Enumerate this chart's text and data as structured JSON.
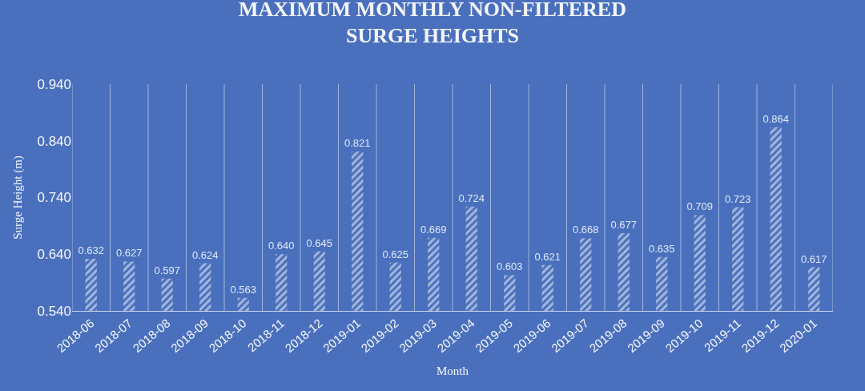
{
  "chart_data": {
    "type": "bar",
    "title": "MAXIMUM MONTHLY NON-FILTERED\nSURGE HEIGHTS",
    "xlabel": "Month",
    "ylabel": "Surge Height (m)",
    "categories": [
      "2018-06",
      "2018-07",
      "2018-08",
      "2018-09",
      "2018-10",
      "2018-11",
      "2018-12",
      "2019-01",
      "2019-02",
      "2019-03",
      "2019-04",
      "2019-05",
      "2019-06",
      "2019-07",
      "2019-08",
      "2019-09",
      "2019-10",
      "2019-11",
      "2019-12",
      "2020-01"
    ],
    "values": [
      0.632,
      0.627,
      0.597,
      0.624,
      0.563,
      0.64,
      0.645,
      0.821,
      0.625,
      0.669,
      0.724,
      0.603,
      0.621,
      0.668,
      0.677,
      0.635,
      0.709,
      0.723,
      0.864,
      0.617
    ],
    "value_labels": [
      "0.632",
      "0.627",
      "0.597",
      "0.624",
      "0.563",
      "0.640",
      "0.645",
      "0.821",
      "0.625",
      "0.669",
      "0.724",
      "0.603",
      "0.621",
      "0.668",
      "0.677",
      "0.635",
      "0.709",
      "0.723",
      "0.864",
      "0.617"
    ],
    "color": "#ffffff",
    "grid": "x",
    "ylim": [
      0.54,
      0.94
    ],
    "yticks": [
      {
        "value": 0.54,
        "label": "0.540"
      },
      {
        "value": 0.64,
        "label": "0.640"
      },
      {
        "value": 0.74,
        "label": "0.740"
      },
      {
        "value": 0.84,
        "label": "0.840"
      },
      {
        "value": 0.94,
        "label": "0.940"
      }
    ]
  }
}
